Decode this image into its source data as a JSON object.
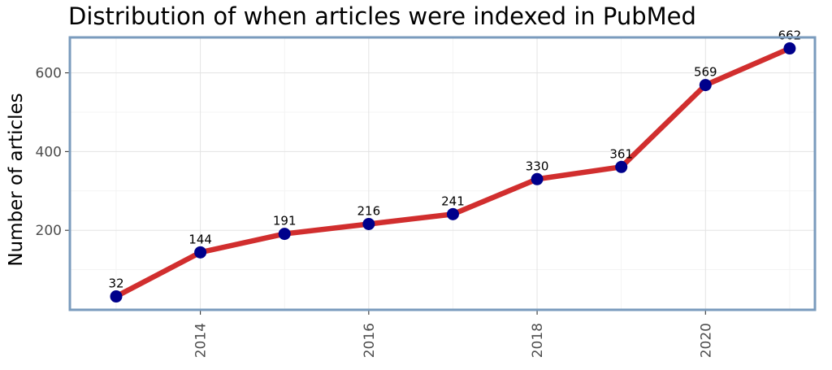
{
  "chart_data": {
    "type": "line",
    "title": "Distribution of when articles were indexed in PubMed",
    "xlabel": "",
    "ylabel": "Number of articles",
    "x": [
      2013,
      2014,
      2015,
      2016,
      2017,
      2018,
      2019,
      2020,
      2021
    ],
    "series": [
      {
        "values": [
          32,
          144,
          191,
          216,
          241,
          330,
          361,
          569,
          662
        ],
        "data_labels": [
          "32",
          "144",
          "191",
          "216",
          "241",
          "330",
          "361",
          "569",
          "662"
        ]
      }
    ],
    "x_ticks": [
      "2014",
      "2016",
      "2018",
      "2020"
    ],
    "y_ticks": [
      "200",
      "400",
      "600"
    ],
    "xlim": [
      2012.45,
      2021.3
    ],
    "ylim": [
      -2,
      690
    ],
    "x_tick_label_rotation": "vertical",
    "grid": true,
    "legend": "none",
    "colors": {
      "line": "#d12e2e",
      "points": "#00008b",
      "panel_border": "#7a9bbd",
      "grid": "#e3e3e3"
    }
  }
}
